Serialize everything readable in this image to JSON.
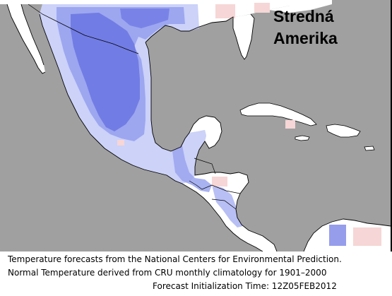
{
  "map": {
    "title_line1": "Stredná",
    "title_line2": "Amerika",
    "colors": {
      "ocean": "#a0a0a0",
      "land_normal": "#ffffff",
      "below_normal_light": "#c7cdf7",
      "below_normal_medium": "#9aa4ef",
      "below_normal_strong": "#6a74e2",
      "above_normal_light": "#f6d6d6",
      "coastline": "#000000"
    }
  },
  "caption": {
    "line1": "Temperature forecasts from the National Centers for Environmental Prediction.",
    "line2": "Normal Temperature derived from CRU monthly climatology for 1901–2000",
    "line3": "Forecast Initialization Time: 12Z05FEB2012"
  }
}
